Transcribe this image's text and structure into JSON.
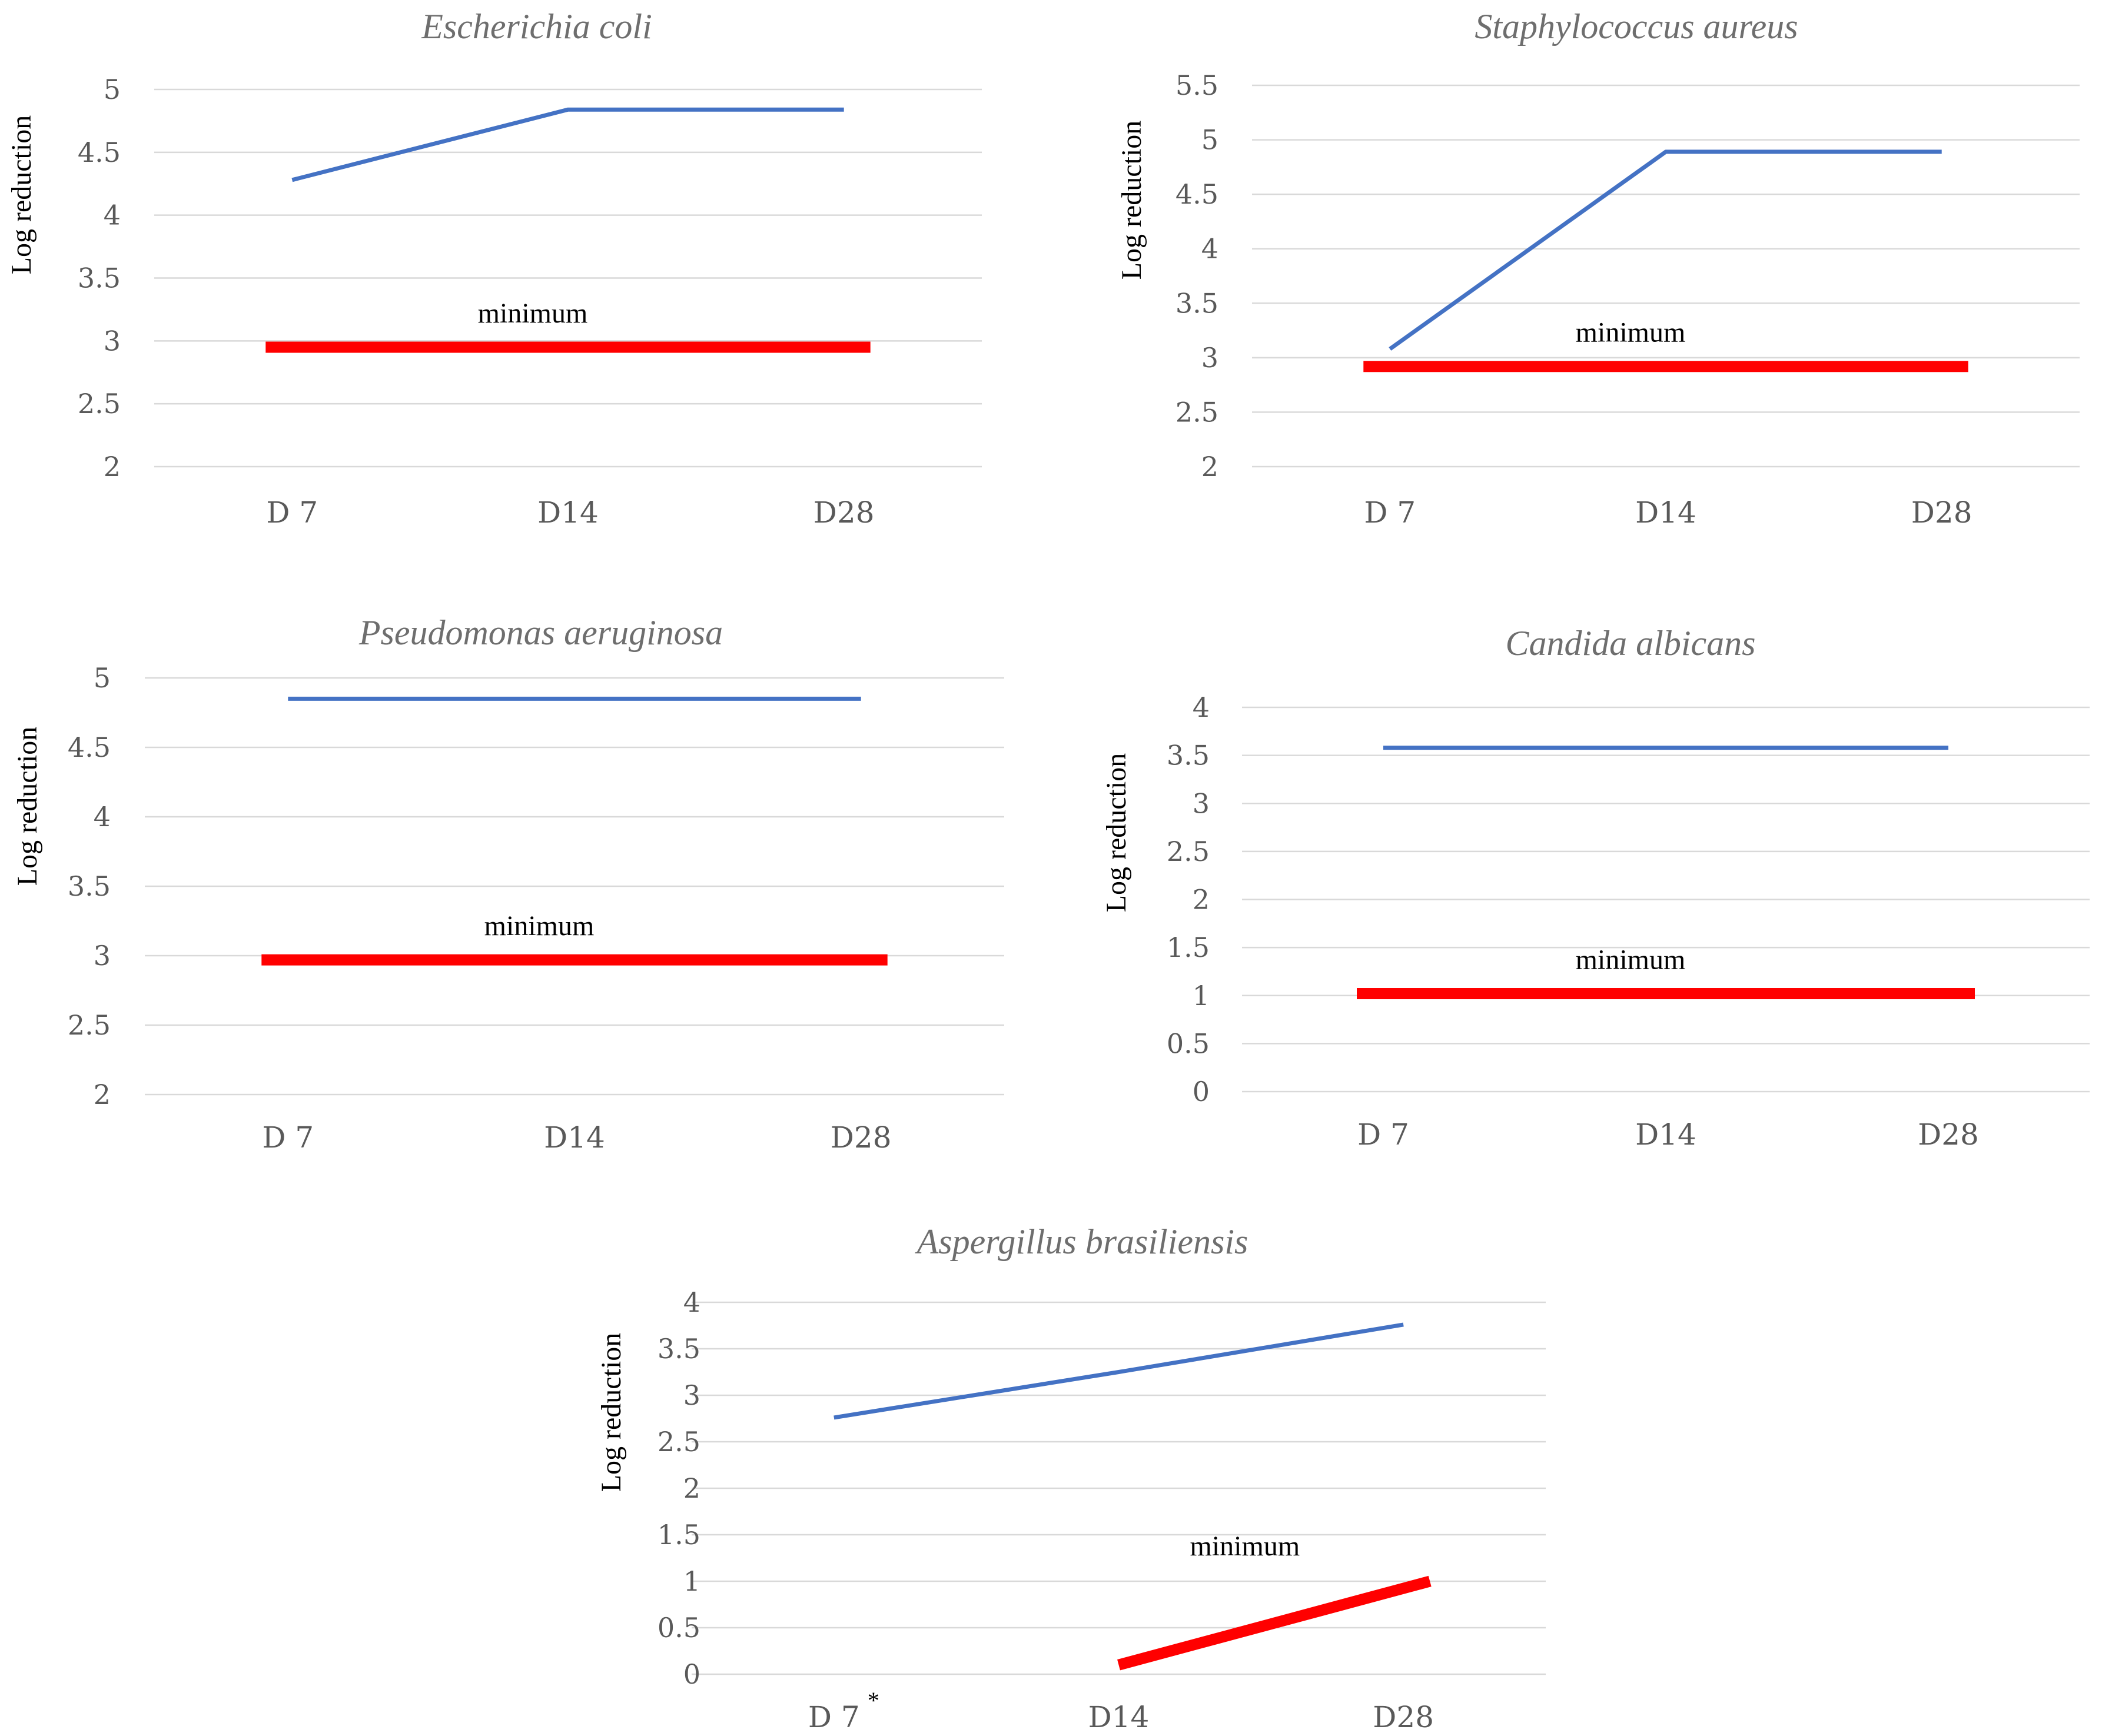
{
  "colors": {
    "series": "#4472c4",
    "minimum": "#ff0000",
    "grid": "#d9d9d9",
    "tick_text": "#595959",
    "title_text": "#6e6e6e"
  },
  "chart_data": [
    {
      "type": "line",
      "title": "Escherichia coli",
      "ylabel": "Log reduction",
      "categories": [
        "D 7",
        "D14",
        "D28"
      ],
      "ylim": [
        2,
        5
      ],
      "yticks": [
        "2",
        "2.5",
        "3",
        "3.5",
        "4",
        "4.5",
        "5"
      ],
      "grid": true,
      "series": [
        {
          "values": [
            4.28,
            4.84,
            4.84
          ]
        },
        {
          "name": "minimum",
          "values": [
            2.95,
            2.95,
            2.95
          ]
        }
      ]
    },
    {
      "type": "line",
      "title": "Staphylococcus aureus",
      "ylabel": "Log reduction",
      "categories": [
        "D 7",
        "D14",
        "D28"
      ],
      "ylim": [
        2,
        5.5
      ],
      "yticks": [
        "2",
        "2.5",
        "3",
        "3.5",
        "4",
        "4.5",
        "5",
        "5.5"
      ],
      "grid": true,
      "series": [
        {
          "values": [
            3.08,
            4.89,
            4.89
          ]
        },
        {
          "name": "minimum",
          "values": [
            2.92,
            2.92,
            2.92
          ]
        }
      ]
    },
    {
      "type": "line",
      "title": "Pseudomonas aeruginosa",
      "ylabel": "Log reduction",
      "categories": [
        "D 7",
        "D14",
        "D28"
      ],
      "ylim": [
        2,
        5
      ],
      "yticks": [
        "2",
        "2.5",
        "3",
        "3.5",
        "4",
        "4.5",
        "5"
      ],
      "grid": true,
      "series": [
        {
          "values": [
            4.85,
            4.85,
            4.85
          ]
        },
        {
          "name": "minimum",
          "values": [
            2.97,
            2.97,
            2.97
          ]
        }
      ]
    },
    {
      "type": "line",
      "title": "Candida albicans",
      "ylabel": "Log reduction",
      "categories": [
        "D 7",
        "D14",
        "D28"
      ],
      "ylim": [
        0,
        4
      ],
      "yticks": [
        "0",
        "0.5",
        "1",
        "1.5",
        "2",
        "2.5",
        "3",
        "3.5",
        "4"
      ],
      "grid": true,
      "series": [
        {
          "values": [
            3.58,
            3.58,
            3.58
          ]
        },
        {
          "name": "minimum",
          "values": [
            1.02,
            1.02,
            1.02
          ]
        }
      ]
    },
    {
      "type": "line",
      "title": "Aspergillus brasiliensis",
      "ylabel": "Log reduction",
      "categories": [
        "D 7",
        "D14",
        "D28"
      ],
      "category_note": "*",
      "ylim": [
        0,
        4
      ],
      "yticks": [
        "0",
        "0.5",
        "1",
        "1.5",
        "2",
        "2.5",
        "3",
        "3.5",
        "4"
      ],
      "grid": true,
      "series": [
        {
          "values": [
            2.76,
            3.25,
            3.76
          ]
        },
        {
          "name": "minimum",
          "values": [
            null,
            0.1,
            1.0
          ]
        }
      ]
    }
  ]
}
